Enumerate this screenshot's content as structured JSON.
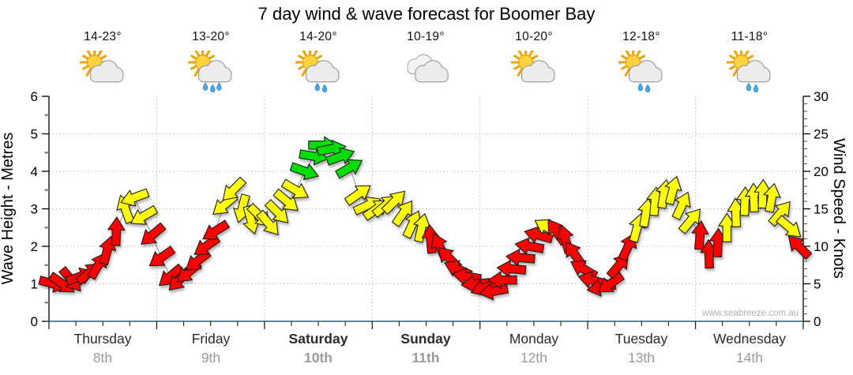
{
  "title": "7 day wind & wave forecast for Boomer Bay",
  "watermark": "www.seabreeze.com.au",
  "days": [
    {
      "name": "Thursday",
      "date": "8th",
      "temp": "14-23°",
      "icon": "sun-cloud",
      "bold": false
    },
    {
      "name": "Friday",
      "date": "9th",
      "temp": "13-20°",
      "icon": "sun-cloud-rain-3",
      "bold": false
    },
    {
      "name": "Saturday",
      "date": "10th",
      "temp": "14-20°",
      "icon": "sun-cloud-rain-2",
      "bold": true
    },
    {
      "name": "Sunday",
      "date": "11th",
      "temp": "10-19°",
      "icon": "clouds",
      "bold": true
    },
    {
      "name": "Monday",
      "date": "12th",
      "temp": "10-20°",
      "icon": "sun-cloud",
      "bold": false
    },
    {
      "name": "Tuesday",
      "date": "13th",
      "temp": "12-18°",
      "icon": "sun-cloud-rain-2",
      "bold": false
    },
    {
      "name": "Wednesday",
      "date": "14th",
      "temp": "11-18°",
      "icon": "sun-cloud-rain-2",
      "bold": false
    }
  ],
  "chart_data": {
    "type": "wind_arrow_timeseries",
    "left_axis": {
      "label": "Wave Height - Metres",
      "min": 0,
      "max": 6,
      "tick_step": 1,
      "minor_step": 0.5
    },
    "right_axis": {
      "label": "Wind Speed - Knots",
      "min": 0,
      "max": 30,
      "tick_step": 5,
      "minor_step": 1
    },
    "grid": {
      "h_lines_metres": [
        1,
        2,
        3,
        4,
        5
      ],
      "v_lines": "day-boundaries",
      "style": "dotted"
    },
    "samples_per_day": 12,
    "dir_convention": "degrees clockwise, 0 = arrow points right",
    "arrow_colors": {
      "r": "#ff0000",
      "y": "#ffff00",
      "g": "#00dd00"
    },
    "days": [
      {
        "knots": [
          5,
          5,
          5.5,
          6,
          6.5,
          7.5,
          9.5,
          12,
          15,
          16.5,
          14,
          11.5
        ],
        "dir_deg": [
          15,
          35,
          50,
          340,
          320,
          300,
          285,
          272,
          250,
          160,
          150,
          140
        ],
        "colors": [
          "r",
          "r",
          "r",
          "r",
          "r",
          "r",
          "r",
          "r",
          "y",
          "y",
          "y",
          "r"
        ]
      },
      {
        "knots": [
          8.5,
          6,
          5.5,
          6.5,
          8,
          10,
          12,
          15.5,
          17.5,
          15,
          13.5,
          14
        ],
        "dir_deg": [
          145,
          140,
          135,
          140,
          142,
          145,
          148,
          140,
          135,
          105,
          75,
          45
        ],
        "colors": [
          "r",
          "r",
          "r",
          "r",
          "r",
          "r",
          "r",
          "y",
          "y",
          "y",
          "y",
          "y"
        ]
      },
      {
        "knots": [
          13,
          14.5,
          16,
          17.5,
          20,
          22,
          23.5,
          23,
          22,
          20.5,
          17,
          15.5
        ],
        "dir_deg": [
          50,
          45,
          40,
          30,
          20,
          10,
          0,
          350,
          340,
          330,
          325,
          335
        ],
        "colors": [
          "y",
          "y",
          "y",
          "y",
          "g",
          "g",
          "g",
          "g",
          "g",
          "g",
          "y",
          "y"
        ]
      },
      {
        "knots": [
          15,
          15.5,
          16,
          14.5,
          13,
          12.5,
          11,
          10,
          8.5,
          7,
          6,
          5
        ],
        "dir_deg": [
          325,
          320,
          315,
          305,
          295,
          283,
          265,
          245,
          225,
          205,
          190,
          175
        ],
        "colors": [
          "y",
          "y",
          "y",
          "y",
          "y",
          "y",
          "r",
          "r",
          "r",
          "r",
          "r",
          "r"
        ]
      },
      {
        "knots": [
          4.5,
          4,
          5.5,
          7,
          8.5,
          10,
          11.5,
          12.5,
          12,
          11,
          9,
          7
        ],
        "dir_deg": [
          160,
          170,
          180,
          185,
          185,
          190,
          195,
          210,
          235,
          255,
          235,
          210
        ],
        "colors": [
          "r",
          "r",
          "r",
          "r",
          "r",
          "r",
          "r",
          "y",
          "r",
          "r",
          "r",
          "r"
        ]
      },
      {
        "knots": [
          5.5,
          4.5,
          5,
          7.5,
          10,
          12.5,
          14.5,
          16,
          17,
          17.5,
          15.5,
          13.5
        ],
        "dir_deg": [
          195,
          170,
          145,
          310,
          295,
          285,
          280,
          275,
          280,
          285,
          295,
          310
        ],
        "colors": [
          "r",
          "r",
          "r",
          "r",
          "r",
          "y",
          "y",
          "y",
          "y",
          "y",
          "y",
          "y"
        ]
      },
      {
        "knots": [
          11.5,
          9,
          10.5,
          12.5,
          14.5,
          16,
          16.5,
          17,
          16.5,
          14.5,
          12.5,
          10
        ],
        "dir_deg": [
          275,
          268,
          272,
          270,
          268,
          272,
          268,
          272,
          280,
          310,
          40,
          225
        ],
        "colors": [
          "r",
          "r",
          "r",
          "y",
          "y",
          "y",
          "y",
          "y",
          "y",
          "y",
          "y",
          "r"
        ]
      }
    ]
  }
}
